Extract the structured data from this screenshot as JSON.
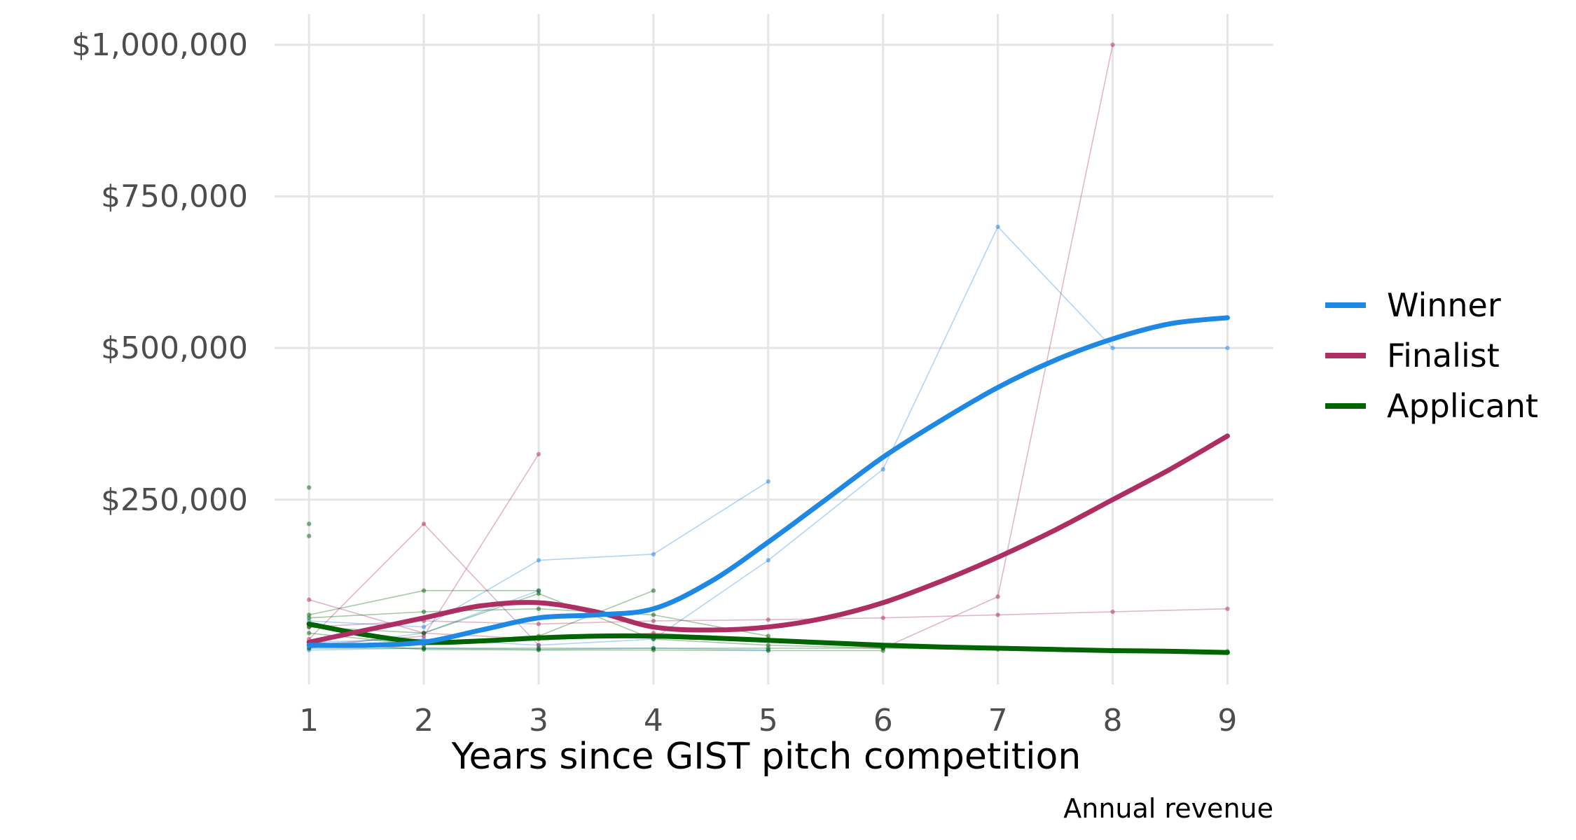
{
  "chart_data": {
    "type": "line",
    "xlabel": "Years since GIST pitch competition",
    "ylabel": "",
    "caption": "Annual revenue",
    "x_ticks": [
      1,
      2,
      3,
      4,
      5,
      6,
      7,
      8,
      9
    ],
    "y_ticks": [
      {
        "value": 250000,
        "label": "$250,000"
      },
      {
        "value": 500000,
        "label": "$500,000"
      },
      {
        "value": 750000,
        "label": "$750,000"
      },
      {
        "value": 1000000,
        "label": "$1,000,000"
      }
    ],
    "xlim": [
      0.7,
      9.4
    ],
    "ylim": [
      -55000,
      1030000
    ],
    "grid": true,
    "legend_position": "right",
    "series": [
      {
        "name": "Winner",
        "color": "#1e88e5",
        "smooth": [
          [
            1,
            10000
          ],
          [
            1.5,
            10000
          ],
          [
            2,
            15000
          ],
          [
            2.5,
            35000
          ],
          [
            3,
            55000
          ],
          [
            3.5,
            60000
          ],
          [
            4,
            70000
          ],
          [
            4.5,
            115000
          ],
          [
            5,
            180000
          ],
          [
            5.5,
            250000
          ],
          [
            6,
            320000
          ],
          [
            6.5,
            380000
          ],
          [
            7,
            435000
          ],
          [
            7.5,
            480000
          ],
          [
            8,
            515000
          ],
          [
            8.5,
            540000
          ],
          [
            9,
            550000
          ]
        ],
        "raw": [
          [
            [
              1,
              50000
            ],
            [
              2,
              40000
            ],
            [
              3,
              150000
            ],
            [
              4,
              160000
            ],
            [
              5,
              280000
            ]
          ],
          [
            [
              1,
              5000
            ],
            [
              2,
              30000
            ],
            [
              3,
              100000
            ]
          ],
          [
            [
              1,
              15000
            ],
            [
              2,
              20000
            ],
            [
              3,
              10000
            ],
            [
              4,
              20000
            ],
            [
              5,
              150000
            ],
            [
              6,
              300000
            ],
            [
              7,
              700000
            ],
            [
              8,
              500000
            ],
            [
              9,
              500000
            ]
          ],
          [
            [
              1,
              2000
            ],
            [
              2,
              5000
            ],
            [
              3,
              3000
            ],
            [
              4,
              5000
            ],
            [
              5,
              2000
            ]
          ]
        ]
      },
      {
        "name": "Finalist",
        "color": "#ad2e62",
        "smooth": [
          [
            1,
            15000
          ],
          [
            1.5,
            35000
          ],
          [
            2,
            55000
          ],
          [
            2.5,
            75000
          ],
          [
            3,
            80000
          ],
          [
            3.5,
            65000
          ],
          [
            4,
            40000
          ],
          [
            4.5,
            35000
          ],
          [
            5,
            40000
          ],
          [
            5.5,
            55000
          ],
          [
            6,
            80000
          ],
          [
            6.5,
            115000
          ],
          [
            7,
            155000
          ],
          [
            7.5,
            200000
          ],
          [
            8,
            250000
          ],
          [
            8.5,
            300000
          ],
          [
            9,
            355000
          ]
        ],
        "raw": [
          [
            [
              1,
              20000
            ],
            [
              2,
              210000
            ],
            [
              3,
              10000
            ]
          ],
          [
            [
              1,
              10000
            ],
            [
              2,
              25000
            ],
            [
              3,
              325000
            ]
          ],
          [
            [
              1,
              40000
            ],
            [
              2,
              50000
            ],
            [
              3,
              45000
            ],
            [
              4,
              50000
            ],
            [
              5,
              52000
            ],
            [
              6,
              55000
            ],
            [
              7,
              60000
            ],
            [
              8,
              65000
            ],
            [
              9,
              70000
            ]
          ],
          [
            [
              1,
              85000
            ],
            [
              2,
              30000
            ],
            [
              3,
              20000
            ],
            [
              4,
              30000
            ],
            [
              5,
              20000
            ],
            [
              6,
              5000
            ],
            [
              7,
              90000
            ],
            [
              8,
              1000000
            ]
          ]
        ]
      },
      {
        "name": "Applicant",
        "color": "#006400",
        "smooth": [
          [
            1,
            45000
          ],
          [
            1.5,
            27000
          ],
          [
            2,
            15000
          ],
          [
            2.5,
            17000
          ],
          [
            3,
            22000
          ],
          [
            3.5,
            25000
          ],
          [
            4,
            25000
          ],
          [
            4.5,
            22000
          ],
          [
            5,
            18000
          ],
          [
            5.5,
            14000
          ],
          [
            6,
            10000
          ],
          [
            6.5,
            7000
          ],
          [
            7,
            5000
          ],
          [
            7.5,
            3000
          ],
          [
            8,
            1000
          ],
          [
            8.5,
            0
          ],
          [
            9,
            -2000
          ]
        ],
        "raw": [
          [
            [
              1,
              60000
            ],
            [
              2,
              100000
            ],
            [
              3,
              100000
            ]
          ],
          [
            [
              1,
              55000
            ],
            [
              2,
              65000
            ],
            [
              3,
              70000
            ],
            [
              4,
              60000
            ],
            [
              5,
              25000
            ]
          ],
          [
            [
              1,
              40000
            ],
            [
              2,
              30000
            ],
            [
              3,
              95000
            ],
            [
              4,
              20000
            ],
            [
              5,
              10000
            ],
            [
              6,
              5000
            ]
          ],
          [
            [
              1,
              30000
            ],
            [
              2,
              10000
            ],
            [
              3,
              25000
            ],
            [
              4,
              100000
            ]
          ],
          [
            [
              1,
              5000
            ],
            [
              2,
              5000
            ],
            [
              3,
              5000
            ],
            [
              4,
              5000
            ],
            [
              5,
              5000
            ],
            [
              6,
              5000
            ],
            [
              7,
              3000
            ],
            [
              8,
              2000
            ],
            [
              9,
              0
            ]
          ],
          [
            [
              1,
              270000
            ]
          ],
          [
            [
              1,
              210000
            ]
          ],
          [
            [
              1,
              190000
            ]
          ],
          [
            [
              1,
              15000
            ],
            [
              2,
              3000
            ],
            [
              3,
              2000
            ],
            [
              4,
              2000
            ],
            [
              5,
              1000
            ],
            [
              6,
              1000
            ]
          ]
        ]
      }
    ]
  }
}
